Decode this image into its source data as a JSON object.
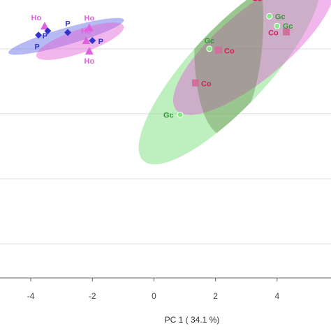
{
  "chart_data": {
    "type": "scatter",
    "xlabel": "PC 1 ( 34.1 %)",
    "x_ticks": [
      -4,
      -2,
      0,
      2,
      4
    ],
    "xlim": [
      -5,
      5.75
    ],
    "ylim": [
      -5.05,
      3.5
    ],
    "grid": true,
    "colors": {
      "Ho": "#e060e0",
      "P": "#3333cc",
      "Co": "#d81e5b",
      "Gc": "#339933",
      "blue_ellipse": "#7a80e8",
      "pink_ellipse": "#e060d8",
      "green_ellipse": "#7ee07e",
      "co_marker": "#d0709a",
      "gc_marker": "#88e888"
    },
    "series": [
      {
        "name": "Ho",
        "marker": "triangle",
        "points": [
          {
            "x": -3.55,
            "y": 2.7,
            "label": "Ho"
          },
          {
            "x": -2.1,
            "y": 2.65,
            "label": "Ho"
          },
          {
            "x": -2.2,
            "y": 2.25,
            "label": "Ho"
          },
          {
            "x": -2.1,
            "y": 1.93,
            "label": "Ho"
          }
        ]
      },
      {
        "name": "P",
        "marker": "diamond",
        "points": [
          {
            "x": -3.45,
            "y": 2.55,
            "label": "P"
          },
          {
            "x": -2.8,
            "y": 2.5,
            "label": "P"
          },
          {
            "x": -2.0,
            "y": 2.25,
            "label": "P"
          },
          {
            "x": -3.75,
            "y": 2.42,
            "label": "P"
          }
        ]
      },
      {
        "name": "Co",
        "marker": "square",
        "points": [
          {
            "x": 3.35,
            "y": 3.58,
            "label": "Co"
          },
          {
            "x": 4.3,
            "y": 2.52,
            "label": "Co"
          },
          {
            "x": 2.1,
            "y": 1.96,
            "label": "Co"
          },
          {
            "x": 1.35,
            "y": 0.95,
            "label": "Co"
          }
        ]
      },
      {
        "name": "Gc",
        "marker": "circle",
        "points": [
          {
            "x": 3.75,
            "y": 3.0,
            "label": "Gc"
          },
          {
            "x": 4.0,
            "y": 2.7,
            "label": "Gc"
          },
          {
            "x": 1.8,
            "y": 2.0,
            "label": "Gc"
          },
          {
            "x": 0.85,
            "y": -0.03,
            "label": "Gc"
          }
        ]
      }
    ],
    "ellipses": [
      {
        "group": "P",
        "cx": -2.85,
        "cy": 2.38,
        "rx": 1.95,
        "ry": 0.26,
        "angle_deg": 16
      },
      {
        "group": "Ho",
        "cx": -2.4,
        "cy": 2.23,
        "rx": 1.5,
        "ry": 0.36,
        "angle_deg": 19
      },
      {
        "group": "Gc",
        "cx": 2.45,
        "cy": 1.4,
        "rx": 4.1,
        "ry": 1.2,
        "angle_deg": 47
      },
      {
        "group": "Co",
        "cx": 3.25,
        "cy": 2.13,
        "rx": 3.3,
        "ry": 1.05,
        "angle_deg": 40
      }
    ]
  }
}
